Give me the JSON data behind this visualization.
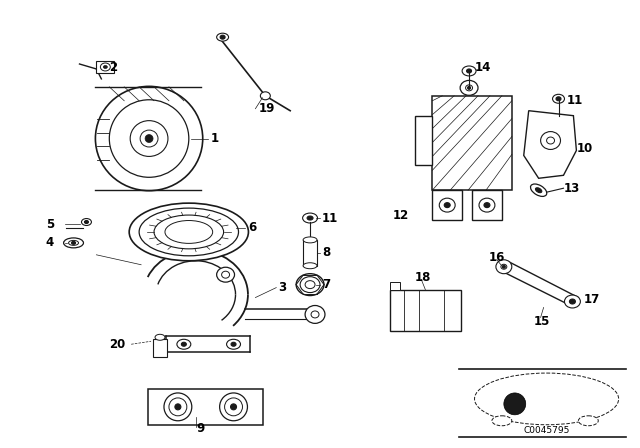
{
  "bg_color": "#ffffff",
  "fig_width": 6.4,
  "fig_height": 4.48,
  "dpi": 100,
  "line_color": "#1a1a1a",
  "label_fontsize": 8.5,
  "code_text": "C0045795"
}
